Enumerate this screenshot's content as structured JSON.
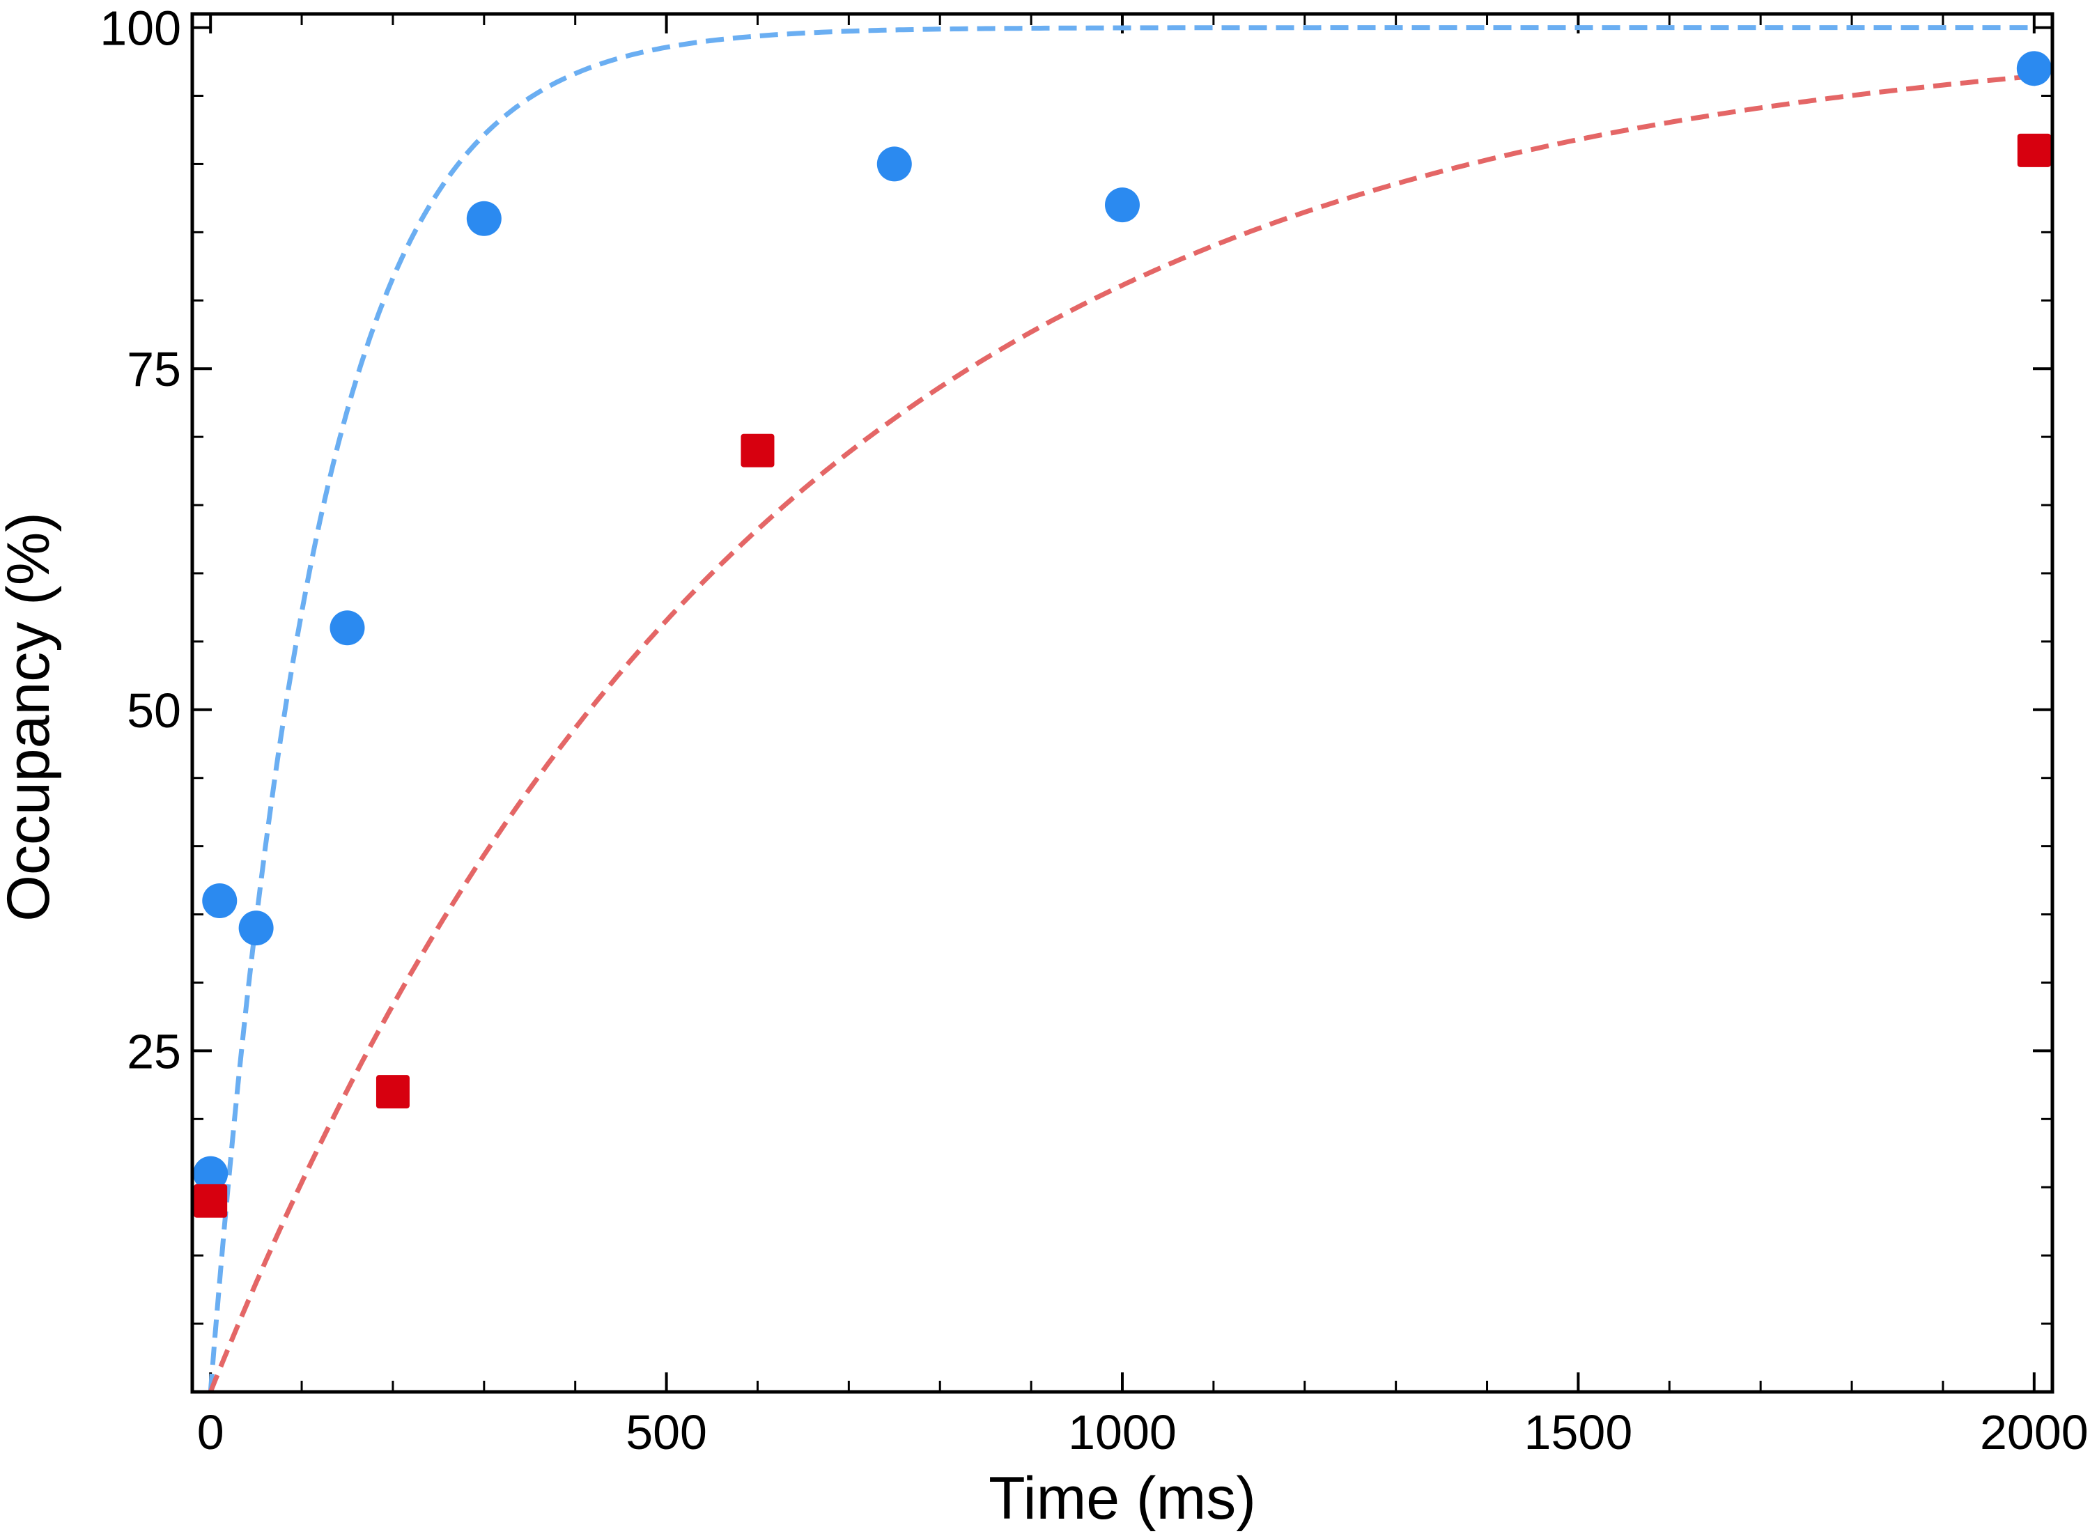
{
  "chart_data": {
    "type": "scatter",
    "xlabel": "Time (ms)",
    "ylabel": "Occupancy (%)",
    "xlim": [
      -20,
      2020
    ],
    "ylim": [
      0,
      101
    ],
    "x_ticks": [
      0,
      500,
      1000,
      1500,
      2000
    ],
    "x_tick_labels": [
      "0",
      "500",
      "1000",
      "1500",
      "2000"
    ],
    "x_minor_step": 100,
    "y_ticks": [
      25,
      50,
      75,
      100
    ],
    "y_tick_labels": [
      "25",
      "50",
      "75",
      "100"
    ],
    "y_minor_step": 5,
    "grid": false,
    "legend": "none",
    "series": [
      {
        "marker": "circle",
        "color": "#2b8af0",
        "points": [
          [
            0,
            16
          ],
          [
            10,
            36
          ],
          [
            50,
            34
          ],
          [
            150,
            56
          ],
          [
            300,
            86
          ],
          [
            750,
            90
          ],
          [
            1000,
            87
          ],
          [
            2000,
            97
          ]
        ]
      },
      {
        "marker": "square",
        "color": "#d7000f",
        "points": [
          [
            0,
            14
          ],
          [
            200,
            22
          ],
          [
            600,
            69
          ],
          [
            2000,
            91
          ]
        ]
      }
    ],
    "fits": [
      {
        "color": "#6aaef2",
        "style": "dashed",
        "model": "exponential-rise",
        "plateau": 100,
        "tau_ms": 118
      },
      {
        "color": "#e46666",
        "style": "dashed",
        "model": "exponential-rise",
        "plateau": 100,
        "tau_ms": 600
      }
    ]
  }
}
